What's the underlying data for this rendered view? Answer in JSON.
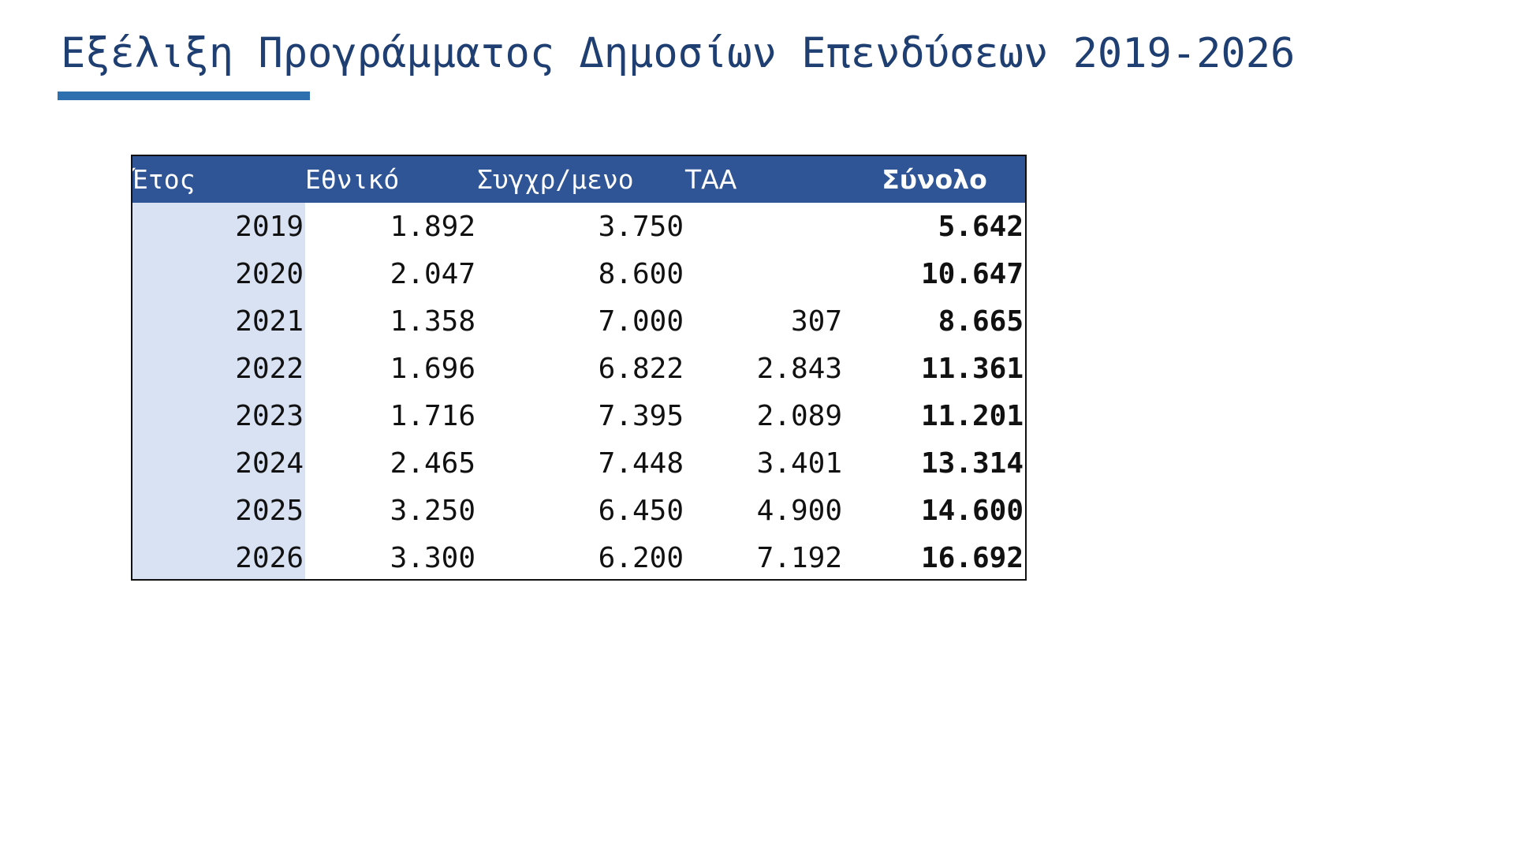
{
  "slide": {
    "title": "Εξέλιξη Προγράμματος Δημοσίων Επενδύσεων 2019-2026",
    "accent_color": "#2e6faf",
    "header_color": "#2f5597",
    "year_column_color": "#d9e2f3"
  },
  "table": {
    "headers": {
      "year": "Έτος",
      "national": "Εθνικό",
      "cofinanced": "Συγχρ/μενο",
      "taa": "ΤΑΑ",
      "total": "Σύνολο"
    },
    "rows": [
      {
        "year": "2019",
        "national": "1.892",
        "cofinanced": "3.750",
        "taa": "",
        "total": "5.642"
      },
      {
        "year": "2020",
        "national": "2.047",
        "cofinanced": "8.600",
        "taa": "",
        "total": "10.647"
      },
      {
        "year": "2021",
        "national": "1.358",
        "cofinanced": "7.000",
        "taa": "307",
        "total": "8.665"
      },
      {
        "year": "2022",
        "national": "1.696",
        "cofinanced": "6.822",
        "taa": "2.843",
        "total": "11.361"
      },
      {
        "year": "2023",
        "national": "1.716",
        "cofinanced": "7.395",
        "taa": "2.089",
        "total": "11.201"
      },
      {
        "year": "2024",
        "national": "2.465",
        "cofinanced": "7.448",
        "taa": "3.401",
        "total": "13.314"
      },
      {
        "year": "2025",
        "national": "3.250",
        "cofinanced": "6.450",
        "taa": "4.900",
        "total": "14.600"
      },
      {
        "year": "2026",
        "national": "3.300",
        "cofinanced": "6.200",
        "taa": "7.192",
        "total": "16.692"
      }
    ]
  }
}
